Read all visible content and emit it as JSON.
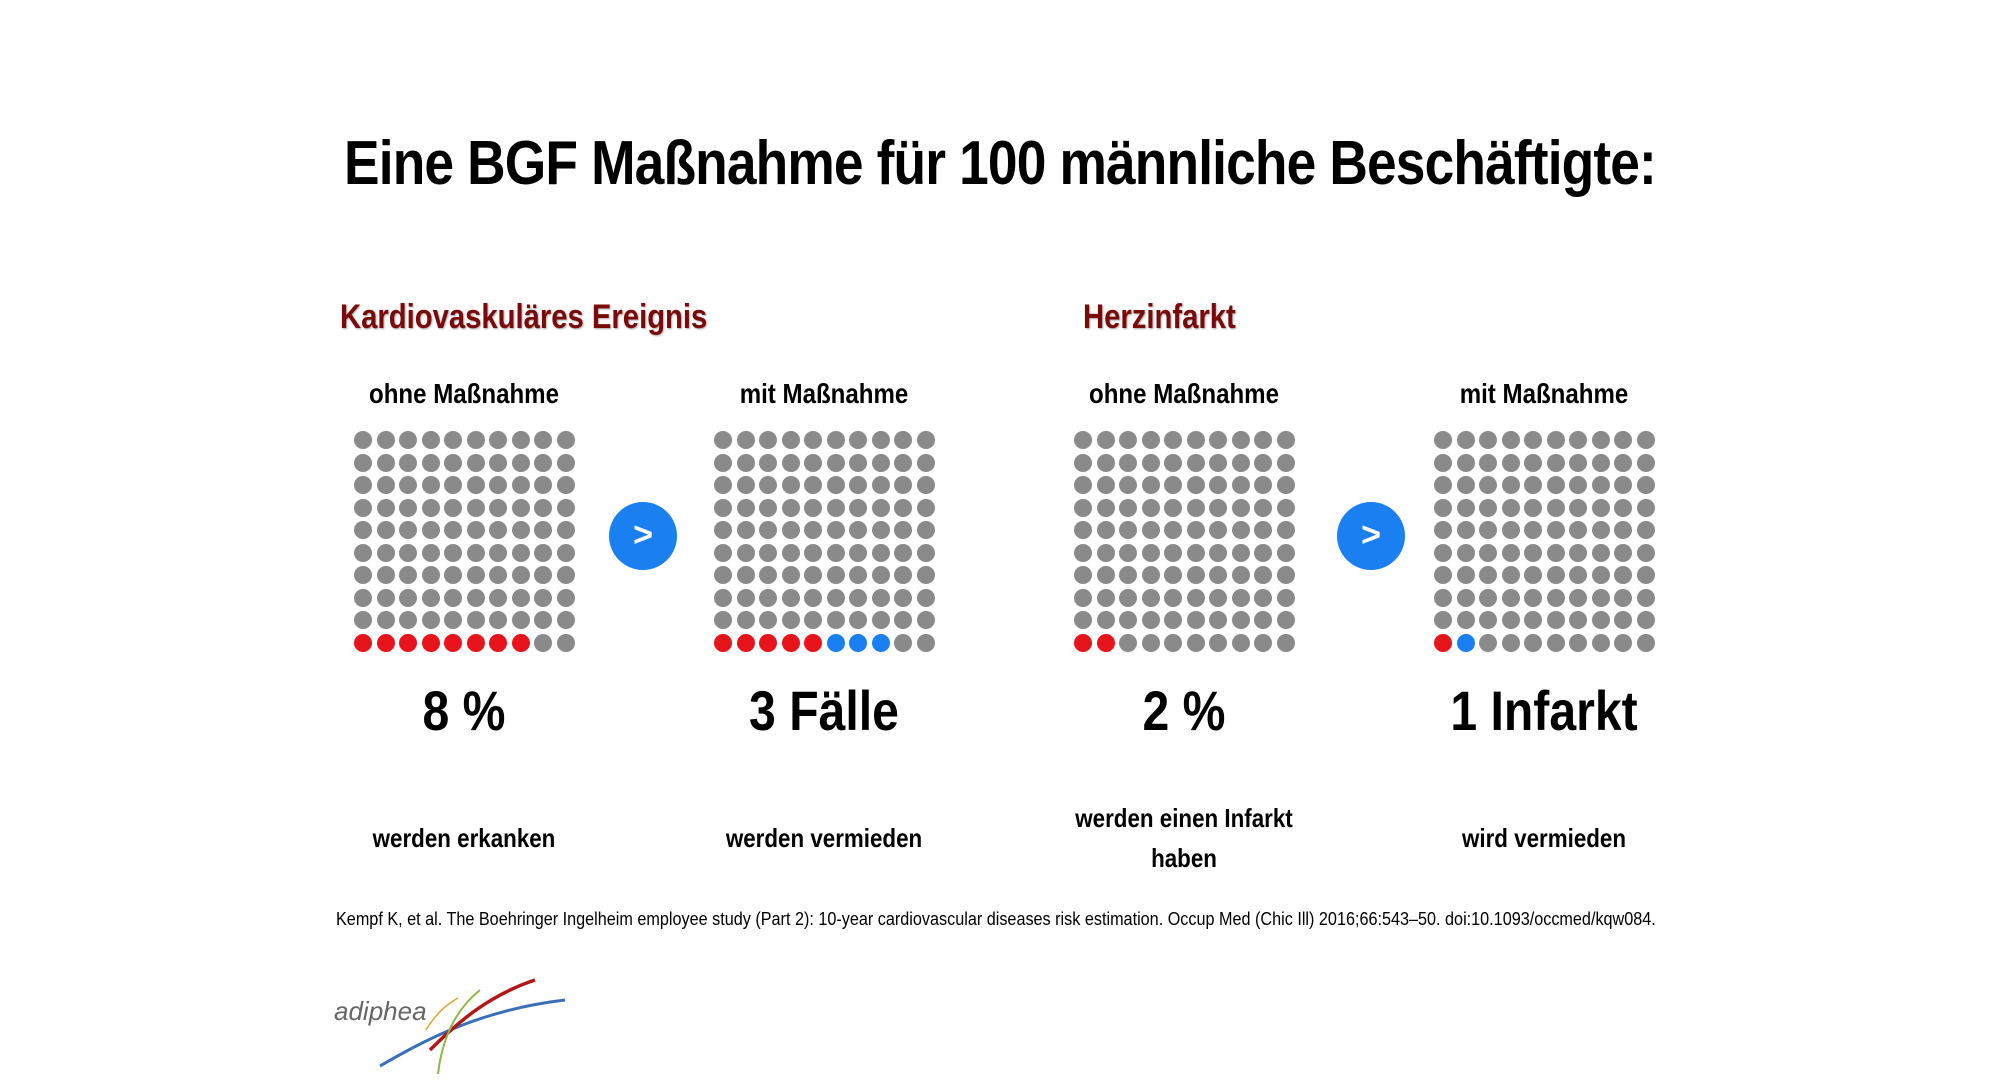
{
  "title": "Eine BGF Maßnahme für 100 männliche Beschäftigte:",
  "colors": {
    "gray": "#8a8a8a",
    "red": "#e8141c",
    "blue": "#1a7ff0",
    "section_title": "#7a0a0a"
  },
  "arrow_symbol": ">",
  "sections": [
    {
      "title": "Kardiovaskuläres Ereignis"
    },
    {
      "title": "Herzinfarkt"
    }
  ],
  "chart_data": [
    {
      "type": "waffle",
      "section": "Kardiovaskuläres Ereignis",
      "label": "ohne Maßnahme",
      "total": 100,
      "red": 8,
      "blue": 0,
      "value_text": "8 %",
      "caption": "werden erkanken"
    },
    {
      "type": "waffle",
      "section": "Kardiovaskuläres Ereignis",
      "label": "mit Maßnahme",
      "total": 100,
      "red": 5,
      "blue": 3,
      "value_text": "3 Fälle",
      "caption": "werden vermieden"
    },
    {
      "type": "waffle",
      "section": "Herzinfarkt",
      "label": "ohne Maßnahme",
      "total": 100,
      "red": 2,
      "blue": 0,
      "value_text": "2 %",
      "caption": "werden einen Infarkt haben"
    },
    {
      "type": "waffle",
      "section": "Herzinfarkt",
      "label": "mit Maßnahme",
      "total": 100,
      "red": 1,
      "blue": 1,
      "value_text": "1 Infarkt",
      "caption": "wird vermieden"
    }
  ],
  "reference": "Kempf K, et al. The Boehringer Ingelheim employee study (Part 2): 10-year cardiovascular diseases risk estimation. Occup Med (Chic Ill) 2016;66:543–50. doi:10.1093/occmed/kqw084.",
  "logo": {
    "text": "adiphea",
    "icon": "swoosh-logo-icon"
  }
}
